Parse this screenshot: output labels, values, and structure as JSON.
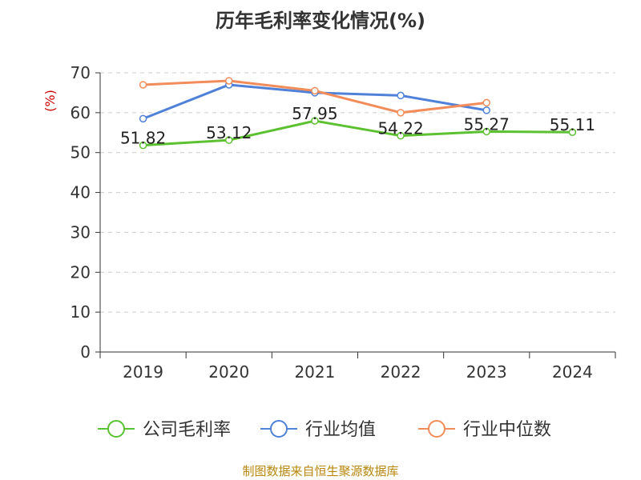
{
  "title": "历年毛利率变化情况(%)",
  "source": "制图数据来自恒生聚源数据库",
  "chart_data": {
    "type": "line",
    "title": "历年毛利率变化情况(%)",
    "ylabel": "(%)",
    "xlabel": "",
    "ylim": [
      0,
      70
    ],
    "yticks": [
      0,
      10,
      20,
      30,
      40,
      50,
      60,
      70
    ],
    "categories": [
      "2019",
      "2020",
      "2021",
      "2022",
      "2023",
      "2024"
    ],
    "grid": true,
    "legend_position": "bottom",
    "series": [
      {
        "name": "公司毛利率",
        "color": "#5cc130",
        "values": [
          51.82,
          53.12,
          57.95,
          54.22,
          55.27,
          55.11
        ],
        "labels": [
          "51.82",
          "53.12",
          "57.95",
          "54.22",
          "55.27",
          "55.11"
        ]
      },
      {
        "name": "行业均值",
        "color": "#4f81d9",
        "values": [
          58.5,
          67.0,
          65.0,
          64.3,
          60.6,
          null
        ]
      },
      {
        "name": "行业中位数",
        "color": "#f28c5a",
        "values": [
          67.0,
          68.0,
          65.5,
          60.0,
          62.5,
          null
        ]
      }
    ]
  }
}
